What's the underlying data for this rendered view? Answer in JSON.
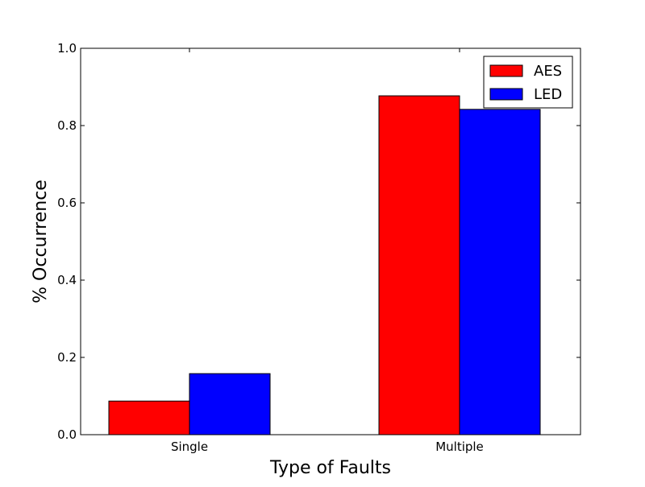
{
  "chart_data": {
    "type": "bar",
    "categories": [
      "Single",
      "Multiple"
    ],
    "series": [
      {
        "name": "AES",
        "values": [
          0.087,
          0.877
        ],
        "color": "#ff0000"
      },
      {
        "name": "LED",
        "values": [
          0.158,
          0.842
        ],
        "color": "#0000ff"
      }
    ],
    "title": "",
    "xlabel": "Type of Faults",
    "ylabel": "% Occurrence",
    "ylim": [
      0.0,
      1.0
    ],
    "yticks": [
      "0.0",
      "0.2",
      "0.4",
      "0.6",
      "0.8",
      "1.0"
    ],
    "grid": false,
    "legend_position": "top-right"
  }
}
